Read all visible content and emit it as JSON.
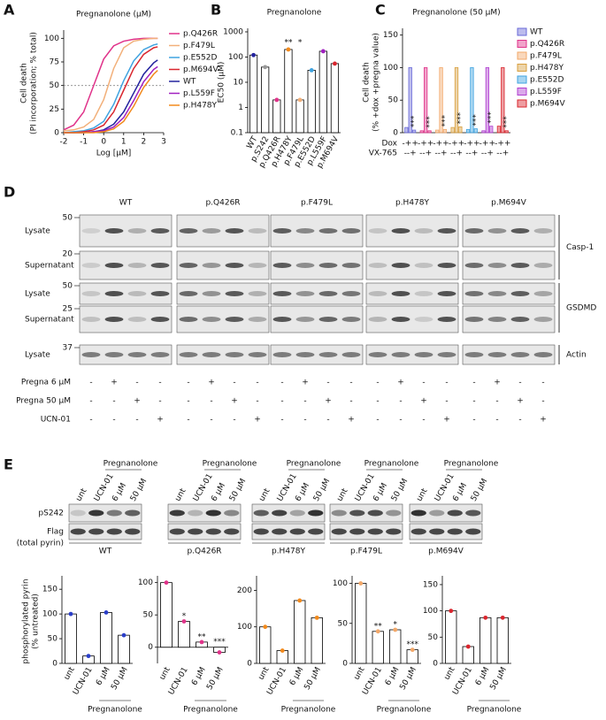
{
  "panel_labels": [
    "A",
    "B",
    "C",
    "D",
    "E"
  ],
  "chart_data": [
    {
      "type": "line",
      "title": "Pregnanolone (μM)",
      "xlabel": "Log [μM]",
      "ylabel": [
        "Cell death",
        "(PI incorporation; % total)"
      ],
      "x": [
        -2,
        -1.5,
        -1,
        -0.5,
        0,
        0.5,
        1,
        1.5,
        2,
        2.5,
        2.7
      ],
      "series": [
        {
          "name": "p.Q426R",
          "color": "#e0338a",
          "values": [
            3,
            8,
            22,
            50,
            78,
            92,
            97,
            99,
            100,
            100,
            100
          ]
        },
        {
          "name": "p.F479L",
          "color": "#f2b07a",
          "values": [
            2,
            3,
            6,
            14,
            35,
            68,
            90,
            97,
            99,
            100,
            100
          ]
        },
        {
          "name": "p.E552D",
          "color": "#3fa3e0",
          "values": [
            0,
            1,
            2,
            5,
            12,
            30,
            55,
            76,
            88,
            93,
            94
          ]
        },
        {
          "name": "p.M694V",
          "color": "#d9262e",
          "values": [
            0,
            0,
            1,
            3,
            8,
            22,
            45,
            68,
            83,
            90,
            91
          ]
        },
        {
          "name": "WT",
          "color": "#23239e",
          "values": [
            0,
            0,
            0,
            1,
            3,
            9,
            22,
            42,
            62,
            74,
            77
          ]
        },
        {
          "name": "p.L559F",
          "color": "#a020c0",
          "values": [
            0,
            0,
            0,
            1,
            2,
            6,
            16,
            34,
            54,
            67,
            70
          ]
        },
        {
          "name": "p.H478Y",
          "color": "#f28a1c",
          "values": [
            0,
            0,
            0,
            0,
            1,
            4,
            12,
            28,
            48,
            62,
            66
          ]
        }
      ],
      "xlim": [
        -2,
        3
      ],
      "xticks": [
        -2,
        -1,
        0,
        1,
        2,
        3
      ],
      "ylim": [
        0,
        105
      ],
      "yticks": [
        0,
        25,
        50,
        75,
        100
      ],
      "reference_line": 50
    },
    {
      "type": "bar",
      "title": "Pregnanolone",
      "ylabel": "EC50 (μM)",
      "log": true,
      "categories": [
        "WT",
        "p.S242",
        "p.Q426R",
        "p.H478Y",
        "p.F479L",
        "p.E552D",
        "p.L559F",
        "p.M694V"
      ],
      "values": [
        120,
        40,
        2,
        200,
        2,
        30,
        170,
        55
      ],
      "colors": [
        "#23239e",
        "#999999",
        "#e0338a",
        "#f28a1c",
        "#f2b07a",
        "#3fa3e0",
        "#a020c0",
        "#d9262e"
      ],
      "significance": [
        null,
        null,
        null,
        "**",
        "*",
        null,
        null,
        null
      ],
      "ylim": [
        0.1,
        1000
      ],
      "yticks": [
        0.1,
        1,
        10,
        100,
        1000
      ]
    },
    {
      "type": "bar",
      "title": "Pregnanolone (50 μM)",
      "ylabel": [
        "Cell death",
        "(% +dox +pregna value)"
      ],
      "series": [
        {
          "name": "WT",
          "color": "#6a6ad8",
          "values": [
            8,
            100,
            4
          ],
          "significance": [
            null,
            null,
            "***"
          ]
        },
        {
          "name": "p.Q426R",
          "color": "#e0338a",
          "values": [
            3,
            100,
            3
          ],
          "significance": [
            null,
            null,
            "***"
          ]
        },
        {
          "name": "p.F479L",
          "color": "#f2a86a",
          "values": [
            4,
            100,
            5
          ],
          "significance": [
            null,
            null,
            "***"
          ]
        },
        {
          "name": "p.H478Y",
          "color": "#d8a040",
          "values": [
            8,
            100,
            9
          ],
          "significance": [
            null,
            null,
            "***"
          ]
        },
        {
          "name": "p.E552D",
          "color": "#3fa3e0",
          "values": [
            5,
            100,
            6
          ],
          "significance": [
            null,
            null,
            "***"
          ]
        },
        {
          "name": "p.L559F",
          "color": "#b040d0",
          "values": [
            3,
            100,
            10
          ],
          "significance": [
            null,
            null,
            "***"
          ]
        },
        {
          "name": "p.M694V",
          "color": "#d9262e",
          "values": [
            10,
            100,
            3
          ],
          "significance": [
            null,
            null,
            "***"
          ]
        }
      ],
      "row_labels": [
        {
          "label": "Dox",
          "signs": [
            "-++",
            "-++",
            "-++",
            "-++",
            "-++",
            "-++",
            "-++"
          ]
        },
        {
          "label": "VX-765",
          "signs": [
            "--+",
            "--+",
            "--+",
            "--+",
            "--+",
            "--+",
            "--+"
          ]
        }
      ],
      "ylim": [
        0,
        155
      ],
      "yticks": [
        0,
        50,
        100,
        150
      ]
    },
    {
      "type": "bar",
      "ylabel": [
        "phosphorylated pyrin",
        "(% untreated)"
      ],
      "categories": [
        "unt",
        "UCN-01",
        "6 μM",
        "50 μM"
      ],
      "values": [
        100,
        15,
        103,
        57
      ],
      "color": "#2b3fc9",
      "ylim": [
        0,
        170
      ],
      "yticks": [
        0,
        50,
        100,
        150
      ],
      "group_label": "Pregnanolone"
    },
    {
      "type": "bar",
      "categories": [
        "unt",
        "UCN-01",
        "6 μM",
        "50 μM"
      ],
      "values": [
        100,
        40,
        8,
        -8
      ],
      "color": "#e0338a",
      "ylim": [
        -25,
        105
      ],
      "yticks": [
        0,
        50,
        100
      ],
      "significance": [
        null,
        "*",
        "**",
        "***"
      ],
      "group_label": "Pregnanolone"
    },
    {
      "type": "bar",
      "categories": [
        "unt",
        "UCN-01",
        "6 μM",
        "50 μM"
      ],
      "values": [
        100,
        35,
        172,
        125
      ],
      "color": "#f28a1c",
      "ylim": [
        0,
        230
      ],
      "yticks": [
        0,
        100,
        200
      ],
      "group_label": "Pregnanolone"
    },
    {
      "type": "bar",
      "categories": [
        "unt",
        "UCN-01",
        "6 μM",
        "50 μM"
      ],
      "values": [
        100,
        40,
        42,
        17
      ],
      "color": "#f2a86a",
      "ylim": [
        0,
        105
      ],
      "yticks": [
        0,
        50,
        100
      ],
      "significance": [
        null,
        "**",
        "*",
        "***"
      ],
      "group_label": "Pregnanolone"
    },
    {
      "type": "bar",
      "categories": [
        "unt",
        "UCN-01",
        "6 μM",
        "50 μM"
      ],
      "values": [
        100,
        32,
        87,
        87
      ],
      "color": "#d9262e",
      "ylim": [
        0,
        160
      ],
      "yticks": [
        0,
        50,
        100,
        150
      ],
      "group_label": "Pregnanolone"
    }
  ],
  "blot_d": {
    "groups": [
      "WT",
      "p.Q426R",
      "p.F479L",
      "p.H478Y",
      "p.M694V"
    ],
    "rows": [
      {
        "label": "Lysate",
        "marker": 50
      },
      {
        "label": "Supernatant",
        "marker": 20
      },
      {
        "label": "Lysate",
        "marker": 50
      },
      {
        "label": "Supernatant",
        "marker": 25
      },
      {
        "label": "Lysate",
        "marker": 37
      }
    ],
    "proteins": [
      "Casp-1",
      "GSDMD",
      "Actin"
    ],
    "conditions": [
      {
        "label": "Pregna 6 μM",
        "signs": [
          "-",
          "+",
          "-",
          "-",
          "-",
          "+",
          "-",
          "-",
          "-",
          "+",
          "-",
          "-",
          "-",
          "+",
          "-",
          "-",
          "-",
          "+",
          "-",
          "-"
        ]
      },
      {
        "label": "Pregna 50 μM",
        "signs": [
          "-",
          "-",
          "+",
          "-",
          "-",
          "-",
          "+",
          "-",
          "-",
          "-",
          "+",
          "-",
          "-",
          "-",
          "+",
          "-",
          "-",
          "-",
          "+",
          "-"
        ]
      },
      {
        "label": "UCN-01",
        "signs": [
          "-",
          "-",
          "-",
          "+",
          "-",
          "-",
          "-",
          "+",
          "-",
          "-",
          "-",
          "+",
          "-",
          "-",
          "-",
          "+",
          "-",
          "-",
          "-",
          "+"
        ]
      }
    ]
  },
  "blot_e": {
    "lanes": [
      "unt",
      "UCN-01",
      "6 μM",
      "50 μM"
    ],
    "treatment": "Pregnanolone",
    "rows": [
      "pS242",
      "Flag",
      "(total pyrin)"
    ],
    "groups": [
      "WT",
      "p.Q426R",
      "p.H478Y",
      "p.F479L",
      "p.M694V"
    ]
  }
}
